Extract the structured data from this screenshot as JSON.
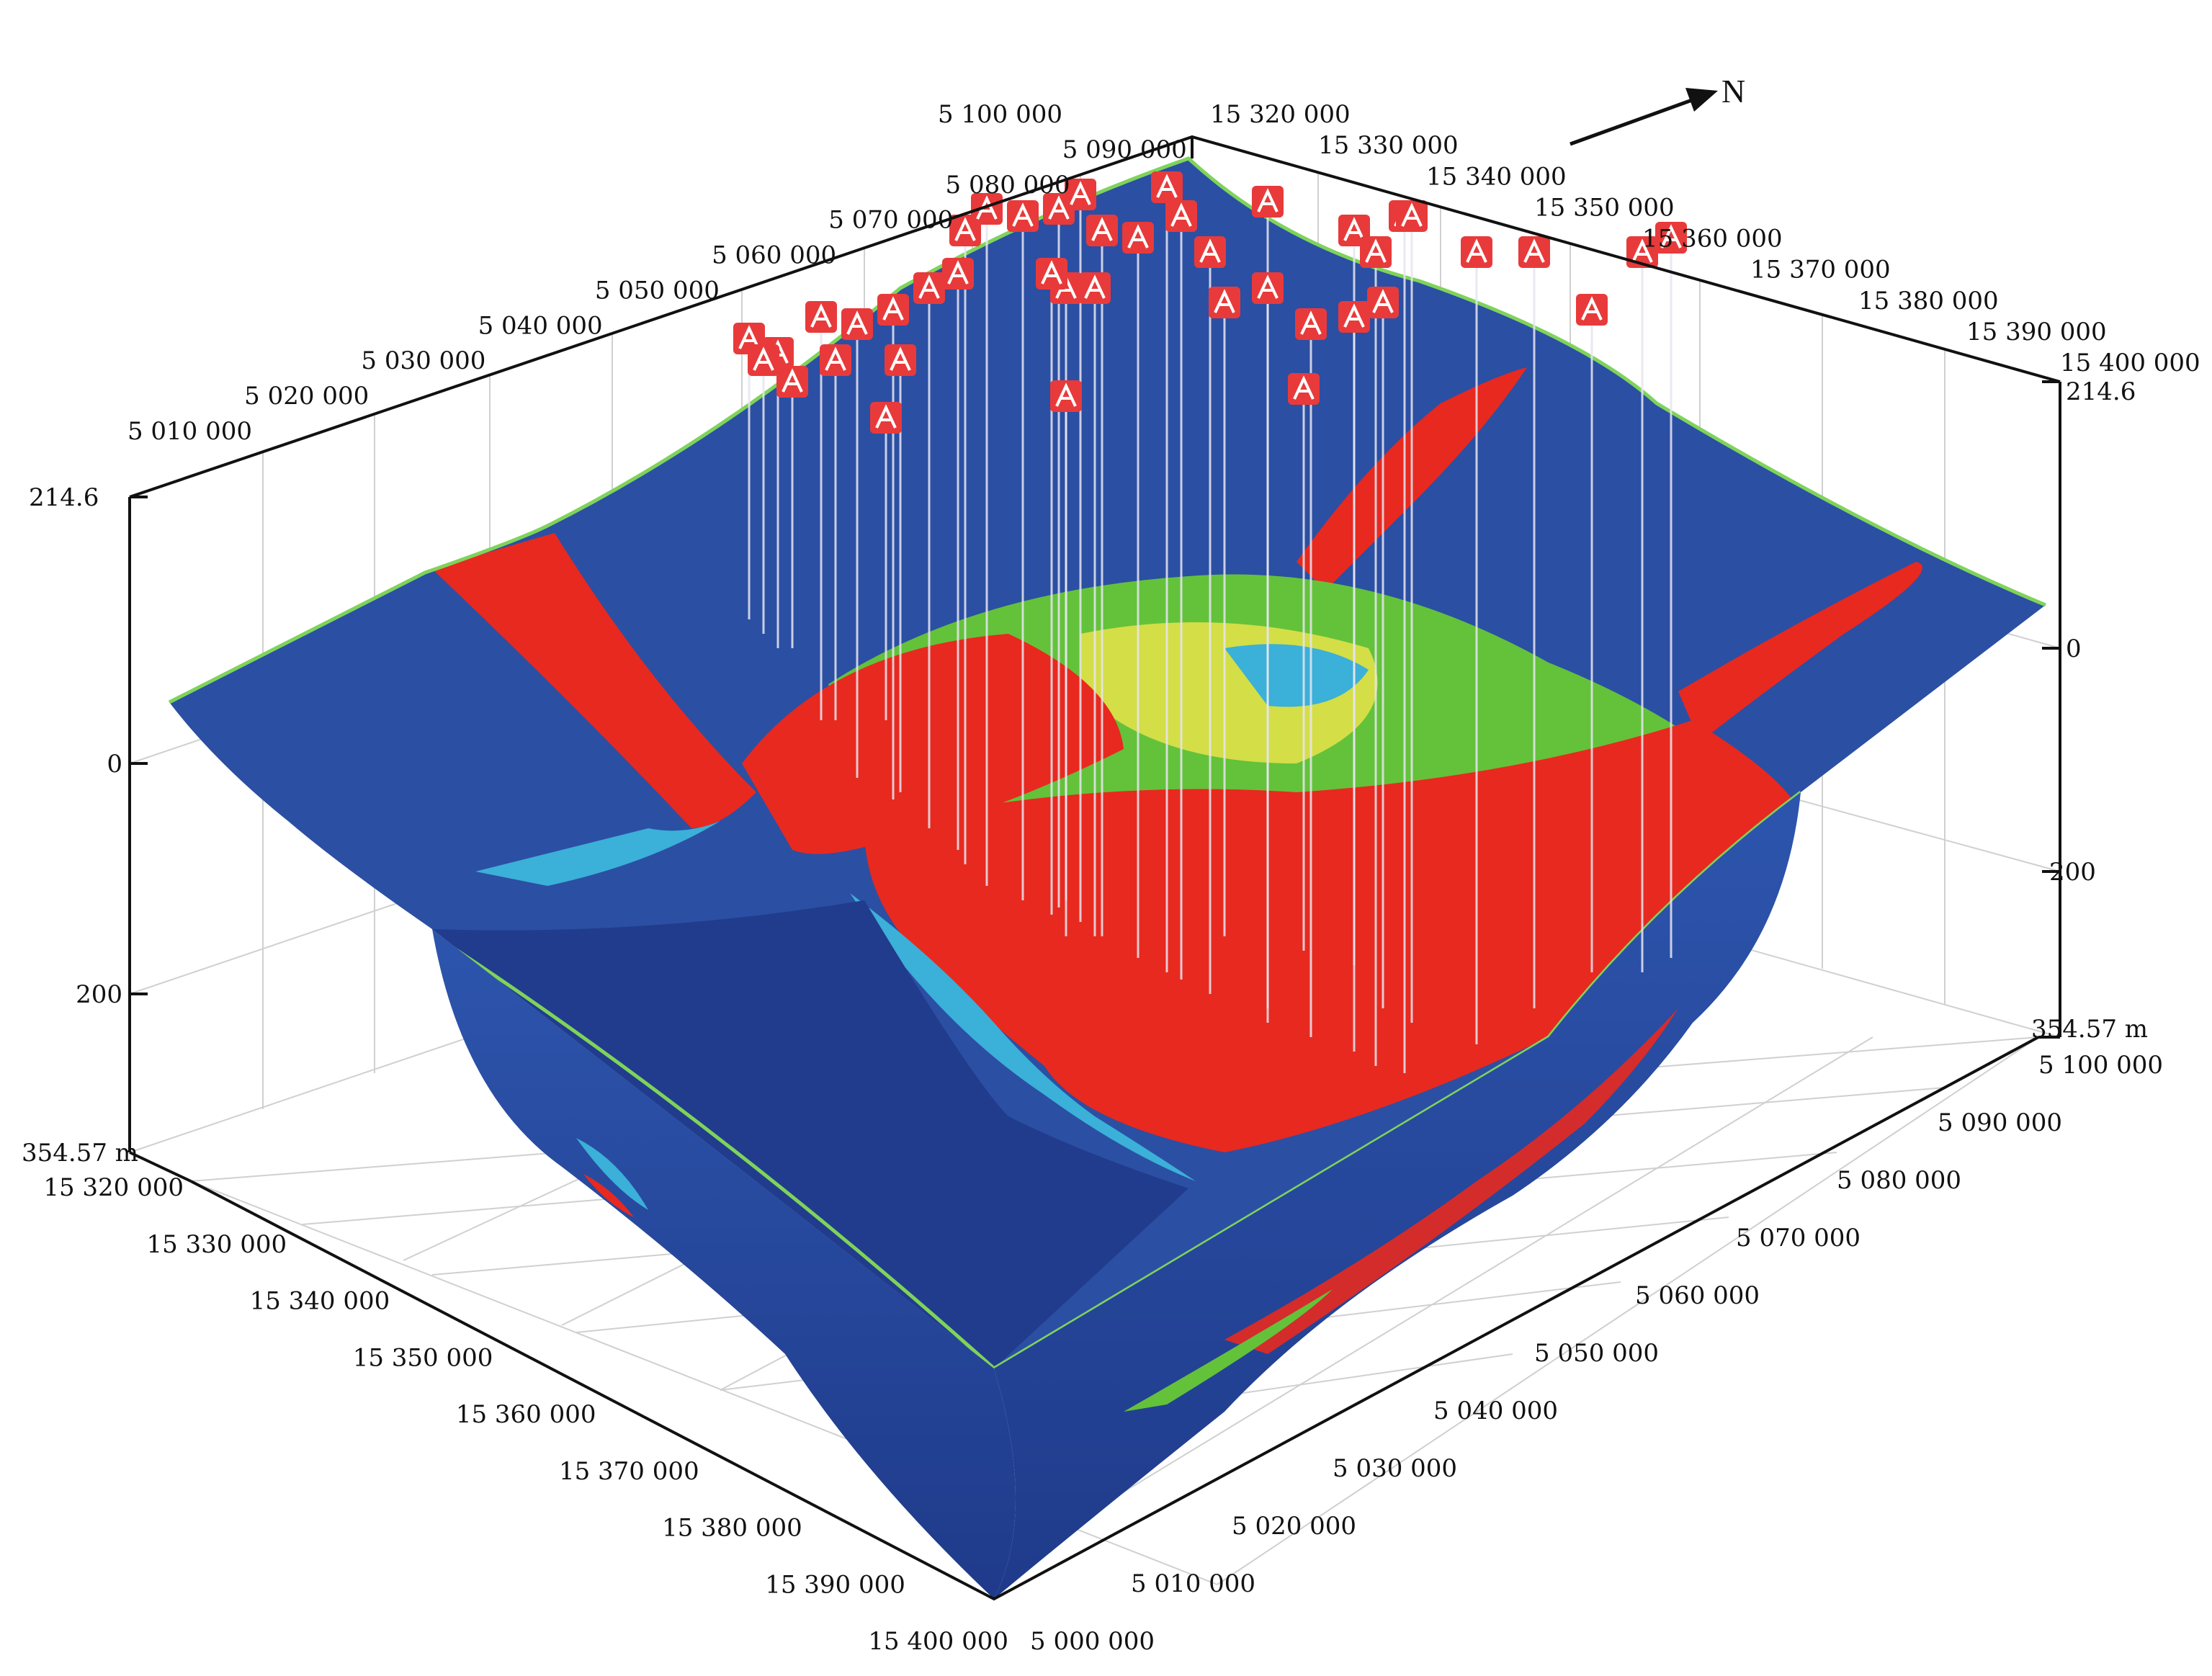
{
  "north": {
    "label": "N"
  },
  "left_back_axis": {
    "ticks": [
      "5 010 000",
      "5 020 000",
      "5 030 000",
      "5 040 000",
      "5 050 000",
      "5 060 000",
      "5 070 000",
      "5 080 000",
      "5 090 000",
      "5 100 000"
    ]
  },
  "right_back_axis": {
    "ticks": [
      "15 320 000",
      "15 330 000",
      "15 340 000",
      "15 350 000",
      "15 360 000",
      "15 370 000",
      "15 380 000",
      "15 390 000",
      "15 400 000"
    ]
  },
  "front_left_axis": {
    "ticks": [
      "15 320 000",
      "15 330 000",
      "15 340 000",
      "15 350 000",
      "15 360 000",
      "15 370 000",
      "15 380 000",
      "15 390 000",
      "15 400 000"
    ]
  },
  "front_right_axis": {
    "ticks": [
      "5 000 000",
      "5 010 000",
      "5 020 000",
      "5 030 000",
      "5 040 000",
      "5 050 000",
      "5 060 000",
      "5 070 000",
      "5 080 000",
      "5 090 000",
      "5 100 000"
    ]
  },
  "left_depth_axis": {
    "top": "214.6",
    "zero": "0",
    "mid": "200",
    "bottom": "354.57 m"
  },
  "right_depth_axis": {
    "top": "214.6",
    "zero": "0",
    "mid": "200",
    "bottom": "354.57 m"
  },
  "colors": {
    "blue": "#2b4fa3",
    "deep_blue": "#213c8c",
    "red": "#e8291f",
    "green": "#63c23a",
    "cyan": "#3bb0d8",
    "yellow": "#e8e34a",
    "outline": "#7fd35a",
    "well_marker": "#e83a3a"
  },
  "well_icon": "oil-well-marker-icon"
}
